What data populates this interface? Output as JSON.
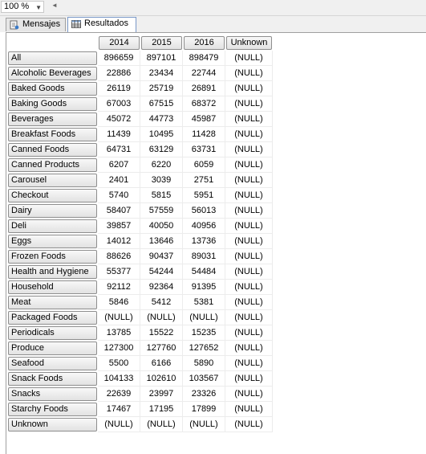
{
  "zoom": {
    "value": "100 %"
  },
  "tabs": [
    {
      "label": "Mensajes",
      "active": false
    },
    {
      "label": "Resultados",
      "active": true
    }
  ],
  "results": {
    "columns": [
      "2014",
      "2015",
      "2016",
      "Unknown"
    ],
    "rows": [
      {
        "label": "All",
        "values": [
          "896659",
          "897101",
          "898479",
          "(NULL)"
        ]
      },
      {
        "label": "Alcoholic Beverages",
        "values": [
          "22886",
          "23434",
          "22744",
          "(NULL)"
        ]
      },
      {
        "label": "Baked Goods",
        "values": [
          "26119",
          "25719",
          "26891",
          "(NULL)"
        ]
      },
      {
        "label": "Baking Goods",
        "values": [
          "67003",
          "67515",
          "68372",
          "(NULL)"
        ]
      },
      {
        "label": "Beverages",
        "values": [
          "45072",
          "44773",
          "45987",
          "(NULL)"
        ]
      },
      {
        "label": "Breakfast Foods",
        "values": [
          "11439",
          "10495",
          "11428",
          "(NULL)"
        ]
      },
      {
        "label": "Canned Foods",
        "values": [
          "64731",
          "63129",
          "63731",
          "(NULL)"
        ]
      },
      {
        "label": "Canned Products",
        "values": [
          "6207",
          "6220",
          "6059",
          "(NULL)"
        ]
      },
      {
        "label": "Carousel",
        "values": [
          "2401",
          "3039",
          "2751",
          "(NULL)"
        ]
      },
      {
        "label": "Checkout",
        "values": [
          "5740",
          "5815",
          "5951",
          "(NULL)"
        ]
      },
      {
        "label": "Dairy",
        "values": [
          "58407",
          "57559",
          "56013",
          "(NULL)"
        ]
      },
      {
        "label": "Deli",
        "values": [
          "39857",
          "40050",
          "40956",
          "(NULL)"
        ]
      },
      {
        "label": "Eggs",
        "values": [
          "14012",
          "13646",
          "13736",
          "(NULL)"
        ]
      },
      {
        "label": "Frozen Foods",
        "values": [
          "88626",
          "90437",
          "89031",
          "(NULL)"
        ]
      },
      {
        "label": "Health and Hygiene",
        "values": [
          "55377",
          "54244",
          "54484",
          "(NULL)"
        ]
      },
      {
        "label": "Household",
        "values": [
          "92112",
          "92364",
          "91395",
          "(NULL)"
        ]
      },
      {
        "label": "Meat",
        "values": [
          "5846",
          "5412",
          "5381",
          "(NULL)"
        ]
      },
      {
        "label": "Packaged Foods",
        "values": [
          "(NULL)",
          "(NULL)",
          "(NULL)",
          "(NULL)"
        ]
      },
      {
        "label": "Periodicals",
        "values": [
          "13785",
          "15522",
          "15235",
          "(NULL)"
        ]
      },
      {
        "label": "Produce",
        "values": [
          "127300",
          "127760",
          "127652",
          "(NULL)"
        ]
      },
      {
        "label": "Seafood",
        "values": [
          "5500",
          "6166",
          "5890",
          "(NULL)"
        ]
      },
      {
        "label": "Snack Foods",
        "values": [
          "104133",
          "102610",
          "103567",
          "(NULL)"
        ]
      },
      {
        "label": "Snacks",
        "values": [
          "22639",
          "23997",
          "23326",
          "(NULL)"
        ]
      },
      {
        "label": "Starchy Foods",
        "values": [
          "17467",
          "17195",
          "17899",
          "(NULL)"
        ]
      },
      {
        "label": "Unknown",
        "values": [
          "(NULL)",
          "(NULL)",
          "(NULL)",
          "(NULL)"
        ]
      }
    ]
  }
}
